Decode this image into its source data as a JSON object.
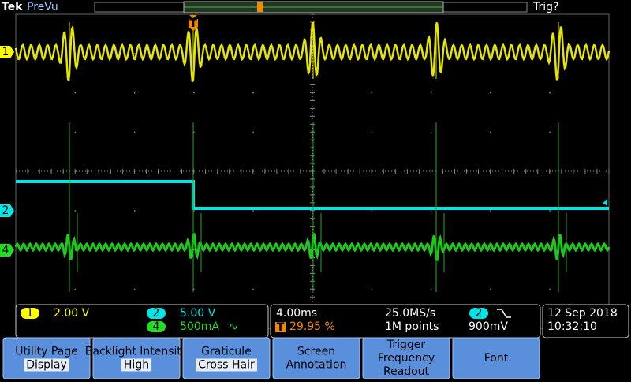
{
  "header": {
    "brand": "Tek",
    "mode": "PreVu",
    "trigger_status": "Trig?"
  },
  "trigger_marker": "T",
  "channels": [
    {
      "number": "1",
      "scale": "2.00 V"
    },
    {
      "number": "2",
      "scale": "5.00 V"
    },
    {
      "number": "4",
      "scale": "500mA",
      "coupling": "∿"
    }
  ],
  "timebase": {
    "horizontal_scale": "4.00ms",
    "sample_rate": "25.0MS/s",
    "trigger_position_marker": "T",
    "trigger_position": "29.95 %",
    "record_length": "1M points",
    "trigger_channel": "2",
    "trigger_level": "900mV"
  },
  "datetime": {
    "date": "12 Sep 2018",
    "time": "10:32:10"
  },
  "menu": [
    {
      "label": "Utility Page",
      "value": "Display"
    },
    {
      "label": "Backlight Intensity",
      "value": "High"
    },
    {
      "label": "Graticule",
      "value": "Cross Hair"
    },
    {
      "label": "Screen Annotation"
    },
    {
      "label": "Trigger Frequency Readout"
    },
    {
      "label": "Font"
    }
  ]
}
